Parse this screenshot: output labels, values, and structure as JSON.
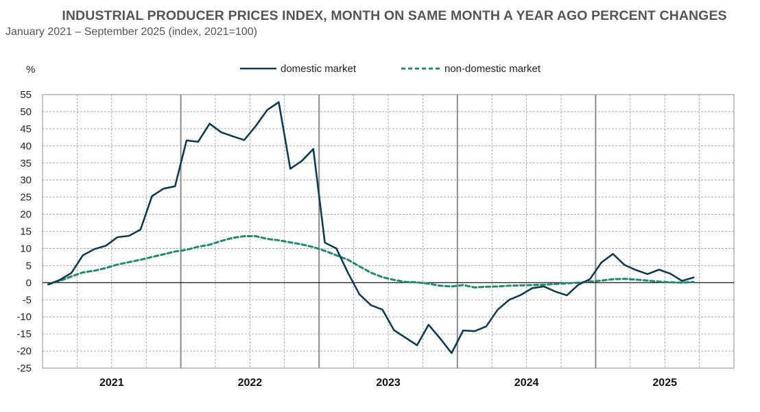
{
  "chart_data": {
    "type": "line",
    "title": "INDUSTRIAL PRODUCER PRICES INDEX, MONTH ON SAME MONTH A YEAR AGO PERCENT CHANGES",
    "subtitle": "January 2021 – September 2025 (index, 2021=100)",
    "ylabel": "%",
    "ylim": [
      -25,
      55
    ],
    "yticks": [
      55,
      50,
      45,
      40,
      35,
      30,
      25,
      20,
      15,
      10,
      5,
      0,
      -5,
      -10,
      -15,
      -20,
      -25
    ],
    "years": [
      "2021",
      "2022",
      "2023",
      "2024",
      "2025"
    ],
    "x_start": "2021-01",
    "legend_position": "top",
    "grid": true,
    "series": [
      {
        "name": "domestic market",
        "color": "#0d3b4f",
        "style": "solid",
        "values": [
          -0.5,
          0.8,
          2.8,
          8.0,
          9.8,
          10.8,
          13.3,
          13.7,
          15.5,
          25.3,
          27.5,
          28.2,
          41.6,
          41.2,
          46.5,
          44.0,
          42.8,
          41.7,
          45.8,
          50.5,
          52.8,
          33.3,
          35.6,
          39.1,
          11.7,
          10.0,
          2.9,
          -3.4,
          -6.6,
          -7.9,
          -13.9,
          -16.1,
          -18.3,
          -12.3,
          -16.3,
          -20.6,
          -14.0,
          -14.2,
          -12.8,
          -7.9,
          -5.0,
          -3.6,
          -1.6,
          -1.1,
          -2.6,
          -3.7,
          -0.6,
          1.0,
          5.9,
          8.4,
          5.2,
          3.7,
          2.5,
          3.8,
          2.6,
          0.5,
          1.5
        ]
      },
      {
        "name": "non-domestic market",
        "color": "#1e8c6b",
        "style": "dashed",
        "values": [
          -0.5,
          0.5,
          1.8,
          3.0,
          3.5,
          4.3,
          5.3,
          6.0,
          6.7,
          7.5,
          8.3,
          9.1,
          9.6,
          10.5,
          11.1,
          12.2,
          13.1,
          13.6,
          13.6,
          12.8,
          12.4,
          11.8,
          11.2,
          10.4,
          9.3,
          8.0,
          6.7,
          4.8,
          2.9,
          1.6,
          0.8,
          0.2,
          0.1,
          -0.3,
          -0.9,
          -1.1,
          -0.7,
          -1.4,
          -1.2,
          -1.1,
          -0.9,
          -0.8,
          -0.7,
          -0.6,
          -0.4,
          -0.2,
          0.0,
          0.3,
          0.6,
          1.0,
          1.1,
          0.9,
          0.6,
          0.3,
          0.1,
          0.0,
          0.2
        ]
      }
    ]
  }
}
